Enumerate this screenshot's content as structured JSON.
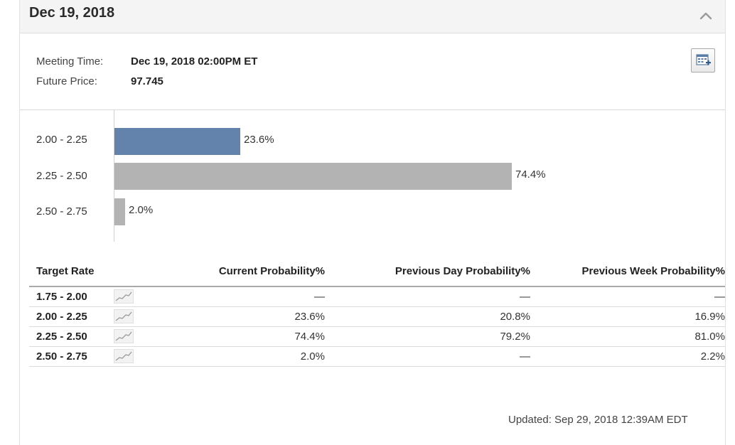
{
  "header": {
    "title": "Dec 19, 2018",
    "collapse_icon": "chevron-up-icon"
  },
  "meeting": {
    "time_label": "Meeting Time:",
    "time_value": "Dec 19, 2018 02:00PM ET",
    "price_label": "Future Price:",
    "price_value": "97.745",
    "calendar_icon": "add-to-calendar-icon"
  },
  "chart_data": {
    "type": "bar",
    "orientation": "horizontal",
    "categories": [
      "2.00 - 2.25",
      "2.25 - 2.50",
      "2.50 - 2.75"
    ],
    "values": [
      23.6,
      74.4,
      2.0
    ],
    "value_labels": [
      "23.6%",
      "74.4%",
      "2.0%"
    ],
    "colors": [
      "#6383ac",
      "#b3b3b3",
      "#b3b3b3"
    ],
    "xlim": [
      0,
      100
    ]
  },
  "table": {
    "headers": [
      "Target Rate",
      "Current Probability%",
      "Previous Day Probability%",
      "Previous Week Probability%"
    ],
    "rows": [
      {
        "rate": "1.75 - 2.00",
        "current": "—",
        "prev_day": "—",
        "prev_week": "—"
      },
      {
        "rate": "2.00 - 2.25",
        "current": "23.6%",
        "prev_day": "20.8%",
        "prev_week": "16.9%"
      },
      {
        "rate": "2.25 - 2.50",
        "current": "74.4%",
        "prev_day": "79.2%",
        "prev_week": "81.0%"
      },
      {
        "rate": "2.50 - 2.75",
        "current": "2.0%",
        "prev_day": "—",
        "prev_week": "2.2%"
      }
    ],
    "sparkline_icon": "sparkline-chart-icon"
  },
  "footer": {
    "updated": "Updated: Sep 29, 2018 12:39AM EDT"
  },
  "colors": {
    "highlight_bar": "#6383ac",
    "default_bar": "#b3b3b3",
    "header_bg": "#f4f4f4"
  }
}
